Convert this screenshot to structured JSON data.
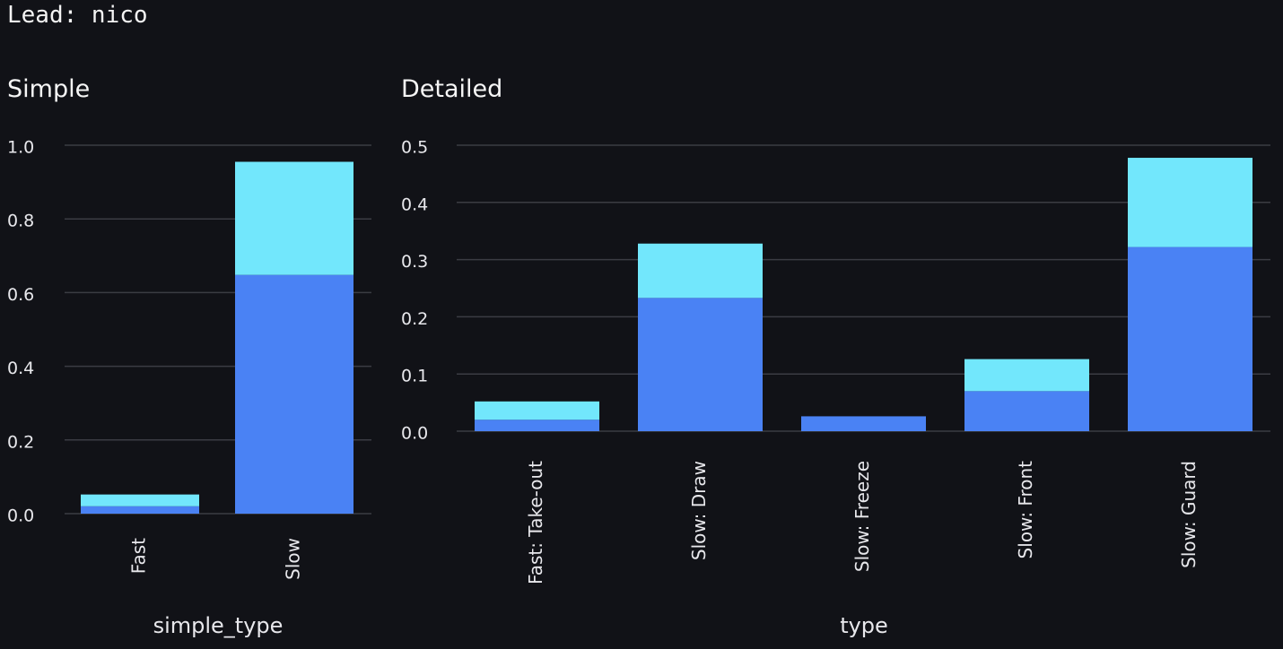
{
  "header": {
    "lead": "Lead: nico"
  },
  "colors": {
    "background": "#111217",
    "series_bottom": "#4a82f4",
    "series_top": "#72e7fc",
    "grid": "#3b3c43"
  },
  "chart_data": [
    {
      "id": "simple",
      "type": "bar",
      "stacked": true,
      "title": "Simple",
      "xlabel": "simple_type",
      "ylabel": "",
      "categories": [
        "Fast",
        "Slow"
      ],
      "series": [
        {
          "values": [
            0.02,
            0.648
          ],
          "color": "#4a82f4"
        },
        {
          "values": [
            0.032,
            0.307
          ],
          "color": "#72e7fc"
        }
      ],
      "ylim": [
        0,
        1.0
      ],
      "yticks": [
        0.0,
        0.2,
        0.4,
        0.6,
        0.8,
        1.0
      ],
      "ytick_labels": [
        "0.0",
        "0.2",
        "0.4",
        "0.6",
        "0.8",
        "1.0"
      ],
      "xtick_rotation": -90,
      "grid": true
    },
    {
      "id": "detailed",
      "type": "bar",
      "stacked": true,
      "title": "Detailed",
      "xlabel": "type",
      "ylabel": "",
      "categories": [
        "Fast: Take-out",
        "Slow: Draw",
        "Slow: Freeze",
        "Slow: Front",
        "Slow: Guard"
      ],
      "series": [
        {
          "values": [
            0.02,
            0.233,
            0.026,
            0.07,
            0.322
          ],
          "color": "#4a82f4"
        },
        {
          "values": [
            0.032,
            0.095,
            0.0,
            0.056,
            0.156
          ],
          "color": "#72e7fc"
        }
      ],
      "ylim": [
        0,
        0.5
      ],
      "yticks": [
        0.0,
        0.1,
        0.2,
        0.3,
        0.4,
        0.5
      ],
      "ytick_labels": [
        "0.0",
        "0.1",
        "0.2",
        "0.3",
        "0.4",
        "0.5"
      ],
      "xtick_rotation": -90,
      "grid": true
    }
  ]
}
